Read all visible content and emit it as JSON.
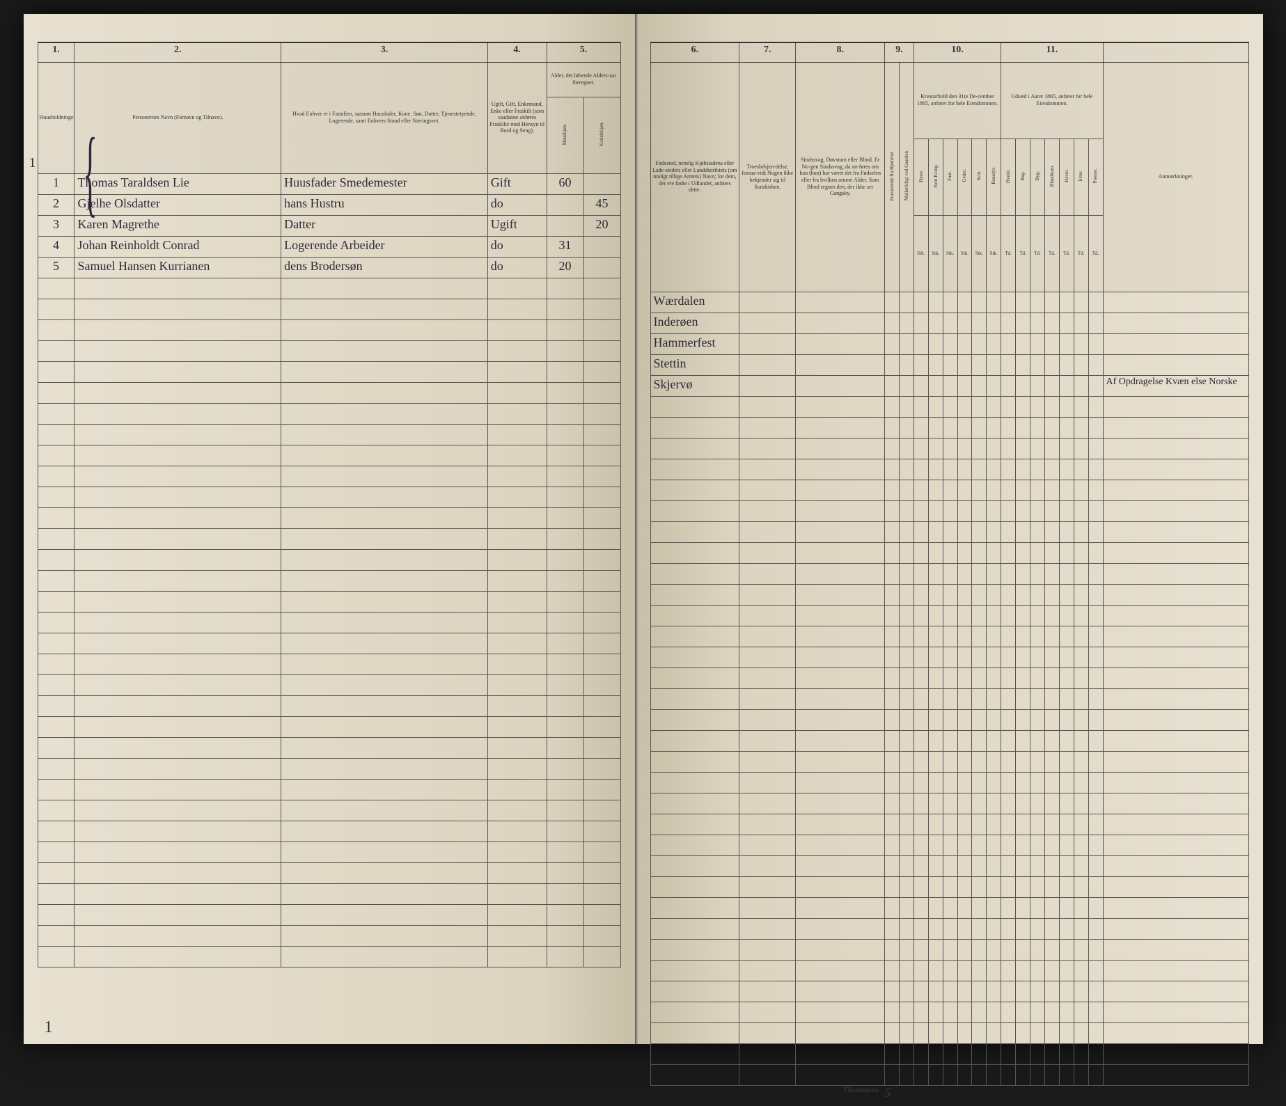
{
  "colors": {
    "paper": "#ddd4c0",
    "ink_print": "#333333",
    "ink_hand": "#2a2a3a",
    "rule": "#555555",
    "background": "#1a1a1a"
  },
  "left_page": {
    "margin_household": "1",
    "col_nums": [
      "1.",
      "2.",
      "3.",
      "4.",
      "5."
    ],
    "headers": {
      "c1": "Huusholdninger.",
      "c2": "Personernes Navn (Fornavn og Tilnavn).",
      "c3": "Hvad Enhver er i Familien, saasom Huusfader, Kone, Søn, Datter, Tjenestetyende, Logerende, samt Enhvers Stand eller Næringsvei.",
      "c4": "Ugift, Gift, Enkemand, Enke eller Fraskilt (som saadanne anføres Fraskilte med Hensyn til Bord og Seng).",
      "c5": "Alder, det løbende Alders-aar iberegnet.",
      "c5a": "Mandkjøn.",
      "c5b": "Kvindekjøn."
    },
    "rows": [
      {
        "num": "1",
        "name": "Thomas Taraldsen Lie",
        "role": "Huusfader Smedemester",
        "status": "Gift",
        "age_m": "60",
        "age_f": ""
      },
      {
        "num": "2",
        "name": "Gjelhe Olsdatter",
        "role": "hans Hustru",
        "status": "do",
        "age_m": "",
        "age_f": "45"
      },
      {
        "num": "3",
        "name": "Karen Magrethe",
        "role": "Datter",
        "status": "Ugift",
        "age_m": "",
        "age_f": "20"
      },
      {
        "num": "4",
        "name": "Johan Reinholdt Conrad",
        "role": "Logerende Arbeider",
        "status": "do",
        "age_m": "31",
        "age_f": ""
      },
      {
        "num": "5",
        "name": "Samuel Hansen Kurrianen",
        "role": "dens Brodersøn",
        "status": "do",
        "age_m": "20",
        "age_f": ""
      }
    ],
    "empty_rows": 33,
    "corner_mark": "1"
  },
  "right_page": {
    "col_nums": [
      "6.",
      "7.",
      "8.",
      "9.",
      "10.",
      "11."
    ],
    "headers": {
      "c6": "Fødested, nemlig Kjøbstadens eller Lade-stedets eller Landdistriktets (om muligt tillige Amtets) Navn; for dem, der ere fødte i Udlandet, anføres dette.",
      "c7": "Troesbekjen-delse, forsaa-vidt Nogen ikke bekjender sig til Statskirken.",
      "c8": "Sindssvag, Døvstum eller Blind. Er No-gen Sindssvag, da an-føres om han (hun) har været det fra Fødselen eller fra hvilken senere Alder. Som Blind regnes den, der ikke ser Gangsky.",
      "c9a": "Fraværende fra Hjemmet",
      "c9b": "Midlertidigt ved Gaarden",
      "c10_title": "Kreaturhold den 31te De-cember 1865, anføret for hele Eiendommen.",
      "c10_cols": [
        "Heste.",
        "Stort Kvæg.",
        "Faar.",
        "Geder.",
        "Svin.",
        "Rensdyr."
      ],
      "c10_sub": [
        "Stk.",
        "Stk.",
        "Stk.",
        "Stk.",
        "Stk.",
        "Stk."
      ],
      "c11_title": "Udsæd i Aaret 1865, anføret for hele Eiendommen.",
      "c11_cols": [
        "Hvede.",
        "Rug.",
        "Byg.",
        "Blandkorn.",
        "Havre.",
        "Erter.",
        "Poteter."
      ],
      "c11_sub": [
        "Td.",
        "Td.",
        "Td.",
        "Td.",
        "Td.",
        "Td.",
        "Td."
      ],
      "c12": "Anmærkninger."
    },
    "rows": [
      {
        "birthplace": "Wærdalen",
        "remark": ""
      },
      {
        "birthplace": "Inderøen",
        "remark": ""
      },
      {
        "birthplace": "Hammerfest",
        "remark": ""
      },
      {
        "birthplace": "Stettin",
        "remark": ""
      },
      {
        "birthplace": "Skjervø",
        "remark": "Af Opdragelse Kvæn else Norske"
      }
    ],
    "footer_label": "Tilsammen",
    "footer_value": "5",
    "empty_rows": 33
  }
}
